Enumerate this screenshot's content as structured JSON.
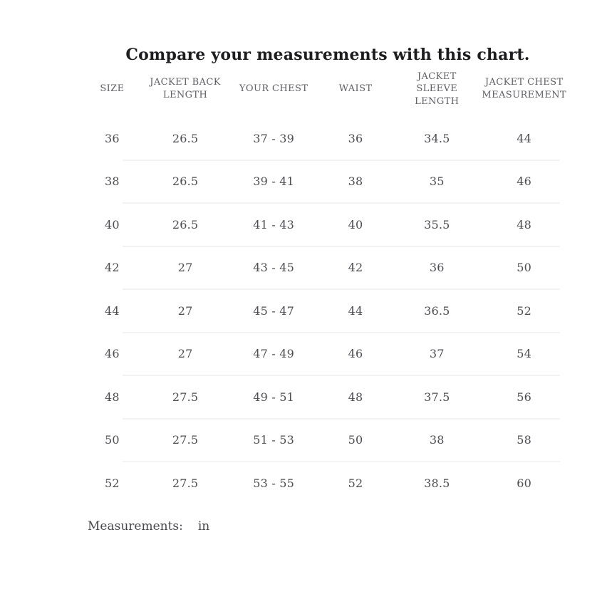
{
  "title": "Compare your measurements with this chart.",
  "footer": {
    "label": "Measurements:",
    "unit": "in"
  },
  "colors": {
    "background": "#ffffff",
    "title_text": "#1d1d1f",
    "header_text": "#5e5e63",
    "cell_text": "#4c4c51",
    "row_divider": "#f3f3f3"
  },
  "chart_data": {
    "type": "table",
    "title": "Compare your measurements with this chart.",
    "units": "in",
    "legend_position": "none",
    "grid": "light horizontal row dividers, no outer border",
    "columns": [
      "SIZE",
      "JACKET BACK LENGTH",
      "YOUR CHEST",
      "WAIST",
      "JACKET SLEEVE LENGTH",
      "JACKET CHEST MEASUREMENT"
    ],
    "rows": [
      [
        "36",
        "26.5",
        "37 - 39",
        "36",
        "34.5",
        "44"
      ],
      [
        "38",
        "26.5",
        "39 - 41",
        "38",
        "35",
        "46"
      ],
      [
        "40",
        "26.5",
        "41 - 43",
        "40",
        "35.5",
        "48"
      ],
      [
        "42",
        "27",
        "43 - 45",
        "42",
        "36",
        "50"
      ],
      [
        "44",
        "27",
        "45 - 47",
        "44",
        "36.5",
        "52"
      ],
      [
        "46",
        "27",
        "47 - 49",
        "46",
        "37",
        "54"
      ],
      [
        "48",
        "27.5",
        "49 - 51",
        "48",
        "37.5",
        "56"
      ],
      [
        "50",
        "27.5",
        "51 - 53",
        "50",
        "38",
        "58"
      ],
      [
        "52",
        "27.5",
        "53 - 55",
        "52",
        "38.5",
        "60"
      ]
    ]
  }
}
